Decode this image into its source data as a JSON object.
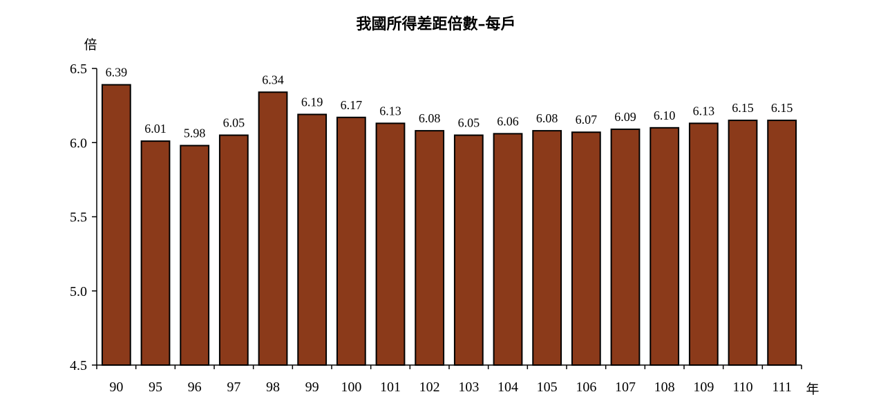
{
  "chart_data": {
    "type": "bar",
    "title": "我國所得差距倍數–每戶",
    "ylabel": "倍",
    "xlabel": "年",
    "ylim": [
      4.5,
      6.5
    ],
    "yticks": [
      "4.5",
      "5.0",
      "5.5",
      "6.0",
      "6.5"
    ],
    "categories": [
      "90",
      "95",
      "96",
      "97",
      "98",
      "99",
      "100",
      "101",
      "102",
      "103",
      "104",
      "105",
      "106",
      "107",
      "108",
      "109",
      "110",
      "111"
    ],
    "values": [
      6.39,
      6.01,
      5.98,
      6.05,
      6.34,
      6.19,
      6.17,
      6.13,
      6.08,
      6.05,
      6.06,
      6.08,
      6.07,
      6.09,
      6.1,
      6.13,
      6.15,
      6.15
    ],
    "labels": [
      "6.39",
      "6.01",
      "5.98",
      "6.05",
      "6.34",
      "6.19",
      "6.17",
      "6.13",
      "6.08",
      "6.05",
      "6.06",
      "6.08",
      "6.07",
      "6.09",
      "6.10",
      "6.13",
      "6.15",
      "6.15"
    ],
    "bar_color": "#8B3A1A",
    "grid": false,
    "legend": "none"
  }
}
